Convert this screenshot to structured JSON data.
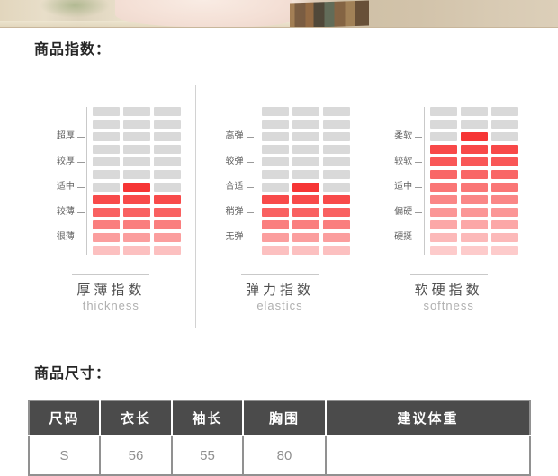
{
  "colors": {
    "bar_gray": "#d9d9d9",
    "highlight_red": "#f63535",
    "table_header_bg": "#4b4b4b"
  },
  "product_index": {
    "heading": "商品指数："
  },
  "charts": [
    {
      "title_cn": "厚薄指数",
      "title_en": "thickness",
      "chart_data": {
        "type": "heatmap",
        "scale": [
          "超厚",
          "较厚",
          "适中",
          "较薄",
          "很薄"
        ],
        "selected": "适中",
        "ticks": [
          {
            "row": 3,
            "label": "超厚"
          },
          {
            "row": 5,
            "label": "较厚"
          },
          {
            "row": 7,
            "label": "适中"
          },
          {
            "row": 9,
            "label": "较薄"
          },
          {
            "row": 11,
            "label": "很薄"
          }
        ],
        "rows": [
          [
            "#d9d9d9",
            "#d9d9d9",
            "#d9d9d9"
          ],
          [
            "#d9d9d9",
            "#d9d9d9",
            "#d9d9d9"
          ],
          [
            "#d9d9d9",
            "#d9d9d9",
            "#d9d9d9"
          ],
          [
            "#d9d9d9",
            "#d9d9d9",
            "#d9d9d9"
          ],
          [
            "#d9d9d9",
            "#d9d9d9",
            "#d9d9d9"
          ],
          [
            "#d9d9d9",
            "#d9d9d9",
            "#d9d9d9"
          ],
          [
            "#d9d9d9",
            "#f63535",
            "#d9d9d9"
          ],
          [
            "#f84a4a",
            "#f84a4a",
            "#f84a4a"
          ],
          [
            "#f96161",
            "#f96161",
            "#f96161"
          ],
          [
            "#fa7e7e",
            "#fa7e7e",
            "#fa7e7e"
          ],
          [
            "#fb9e9e",
            "#fb9e9e",
            "#fb9e9e"
          ],
          [
            "#fcc0c0",
            "#fcc0c0",
            "#fcc0c0"
          ]
        ]
      }
    },
    {
      "title_cn": "弹力指数",
      "title_en": "elastics",
      "chart_data": {
        "type": "heatmap",
        "scale": [
          "高弹",
          "较弹",
          "合适",
          "稍弹",
          "无弹"
        ],
        "selected": "合适",
        "ticks": [
          {
            "row": 3,
            "label": "高弹"
          },
          {
            "row": 5,
            "label": "较弹"
          },
          {
            "row": 7,
            "label": "合适"
          },
          {
            "row": 9,
            "label": "稍弹"
          },
          {
            "row": 11,
            "label": "无弹"
          }
        ],
        "rows": [
          [
            "#d9d9d9",
            "#d9d9d9",
            "#d9d9d9"
          ],
          [
            "#d9d9d9",
            "#d9d9d9",
            "#d9d9d9"
          ],
          [
            "#d9d9d9",
            "#d9d9d9",
            "#d9d9d9"
          ],
          [
            "#d9d9d9",
            "#d9d9d9",
            "#d9d9d9"
          ],
          [
            "#d9d9d9",
            "#d9d9d9",
            "#d9d9d9"
          ],
          [
            "#d9d9d9",
            "#d9d9d9",
            "#d9d9d9"
          ],
          [
            "#d9d9d9",
            "#f63535",
            "#d9d9d9"
          ],
          [
            "#f84a4a",
            "#f84a4a",
            "#f84a4a"
          ],
          [
            "#f96161",
            "#f96161",
            "#f96161"
          ],
          [
            "#fa7e7e",
            "#fa7e7e",
            "#fa7e7e"
          ],
          [
            "#fb9e9e",
            "#fb9e9e",
            "#fb9e9e"
          ],
          [
            "#fcc0c0",
            "#fcc0c0",
            "#fcc0c0"
          ]
        ]
      }
    },
    {
      "title_cn": "软硬指数",
      "title_en": "softness",
      "chart_data": {
        "type": "heatmap",
        "scale": [
          "柔软",
          "较软",
          "适中",
          "偏硬",
          "硬挺"
        ],
        "selected": "柔软",
        "ticks": [
          {
            "row": 3,
            "label": "柔软"
          },
          {
            "row": 5,
            "label": "较软"
          },
          {
            "row": 7,
            "label": "适中"
          },
          {
            "row": 9,
            "label": "偏硬"
          },
          {
            "row": 11,
            "label": "硬挺"
          }
        ],
        "rows": [
          [
            "#d9d9d9",
            "#d9d9d9",
            "#d9d9d9"
          ],
          [
            "#d9d9d9",
            "#d9d9d9",
            "#d9d9d9"
          ],
          [
            "#d9d9d9",
            "#f63535",
            "#d9d9d9"
          ],
          [
            "#f84848",
            "#f84848",
            "#f84848"
          ],
          [
            "#f95757",
            "#f95757",
            "#f95757"
          ],
          [
            "#f96666",
            "#f96666",
            "#f96666"
          ],
          [
            "#fa7676",
            "#fa7676",
            "#fa7676"
          ],
          [
            "#fa8686",
            "#fa8686",
            "#fa8686"
          ],
          [
            "#fb9696",
            "#fb9696",
            "#fb9696"
          ],
          [
            "#fca7a7",
            "#fca7a7",
            "#fca7a7"
          ],
          [
            "#fcb9b9",
            "#fcb9b9",
            "#fcb9b9"
          ],
          [
            "#fdcbcb",
            "#fdcbcb",
            "#fdcbcb"
          ]
        ]
      }
    }
  ],
  "product_size": {
    "heading": "商品尺寸："
  },
  "size_table": {
    "headers": [
      "尺码",
      "衣长",
      "袖长",
      "胸围",
      "建议体重"
    ],
    "rows": [
      [
        "S",
        "56",
        "55",
        "80",
        ""
      ]
    ]
  }
}
